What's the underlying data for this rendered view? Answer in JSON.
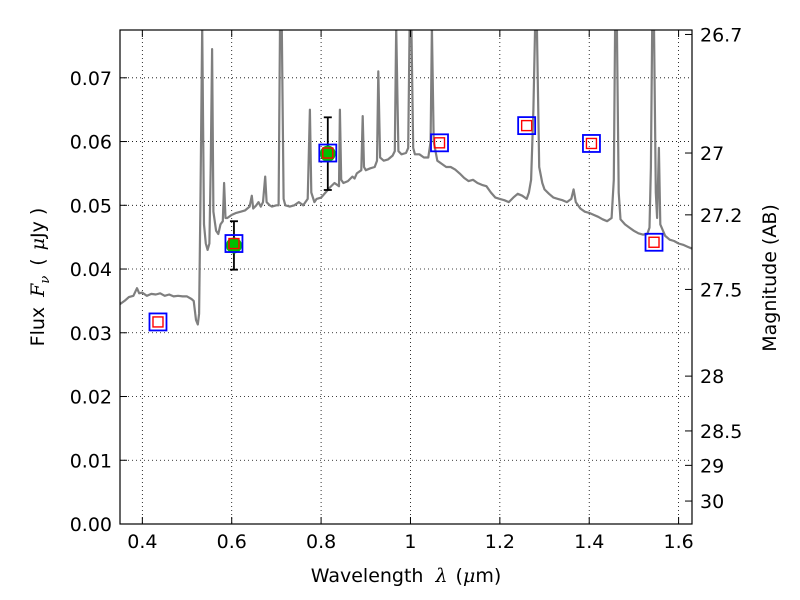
{
  "chart_data": {
    "type": "scatter",
    "xlabel": {
      "text": "Wavelength",
      "symbol": "λ",
      "unit_open": "(",
      "unit_mu": "μ",
      "unit_rest": "m)"
    },
    "ylabel": {
      "text": "Flux",
      "symbol": "F",
      "sub": "ν",
      "unit_open": "(",
      "unit_mu": "μ",
      "unit_rest": "Jy",
      "unit_close": ")"
    },
    "y2label": "Magnitude (AB)",
    "xlim": [
      0.35,
      1.63
    ],
    "ylim": [
      0.0,
      0.0775
    ],
    "grid": true,
    "x_ticks": [
      {
        "value": 0.4,
        "label": "0.4"
      },
      {
        "value": 0.6,
        "label": "0.6"
      },
      {
        "value": 0.8,
        "label": "0.8"
      },
      {
        "value": 1.0,
        "label": "1"
      },
      {
        "value": 1.2,
        "label": "1.2"
      },
      {
        "value": 1.4,
        "label": "1.4"
      },
      {
        "value": 1.6,
        "label": "1.6"
      }
    ],
    "y_ticks": [
      {
        "value": 0.0,
        "label": "0.00"
      },
      {
        "value": 0.01,
        "label": "0.01"
      },
      {
        "value": 0.02,
        "label": "0.02"
      },
      {
        "value": 0.03,
        "label": "0.03"
      },
      {
        "value": 0.04,
        "label": "0.04"
      },
      {
        "value": 0.05,
        "label": "0.05"
      },
      {
        "value": 0.06,
        "label": "0.06"
      },
      {
        "value": 0.07,
        "label": "0.07"
      }
    ],
    "mag_ticks": [
      {
        "flux": 0.0768,
        "label": "26.7"
      },
      {
        "flux": 0.0582,
        "label": "27"
      },
      {
        "flux": 0.0485,
        "label": "27.2"
      },
      {
        "flux": 0.0368,
        "label": "27.5"
      },
      {
        "flux": 0.0232,
        "label": "28"
      },
      {
        "flux": 0.0146,
        "label": "28.5"
      },
      {
        "flux": 0.0092,
        "label": "29"
      },
      {
        "flux": 0.0036,
        "label": "30"
      }
    ],
    "observed": [
      {
        "x": 0.605,
        "y": 0.0437,
        "yerr": 0.0038
      },
      {
        "x": 0.815,
        "y": 0.0581,
        "yerr": 0.0057
      }
    ],
    "model_points": [
      {
        "x": 0.435,
        "y": 0.0317
      },
      {
        "x": 0.605,
        "y": 0.044
      },
      {
        "x": 0.815,
        "y": 0.0582
      },
      {
        "x": 1.065,
        "y": 0.0598
      },
      {
        "x": 1.26,
        "y": 0.0625
      },
      {
        "x": 1.405,
        "y": 0.0597
      },
      {
        "x": 1.545,
        "y": 0.0442
      }
    ],
    "spectrum": [
      [
        0.35,
        0.0345
      ],
      [
        0.36,
        0.035
      ],
      [
        0.37,
        0.0356
      ],
      [
        0.38,
        0.0358
      ],
      [
        0.388,
        0.037
      ],
      [
        0.393,
        0.0362
      ],
      [
        0.4,
        0.0363
      ],
      [
        0.41,
        0.0358
      ],
      [
        0.42,
        0.0361
      ],
      [
        0.43,
        0.036
      ],
      [
        0.44,
        0.0362
      ],
      [
        0.45,
        0.0358
      ],
      [
        0.46,
        0.036
      ],
      [
        0.47,
        0.0357
      ],
      [
        0.48,
        0.0358
      ],
      [
        0.49,
        0.0357
      ],
      [
        0.5,
        0.0357
      ],
      [
        0.51,
        0.0353
      ],
      [
        0.515,
        0.035
      ],
      [
        0.52,
        0.032
      ],
      [
        0.524,
        0.0313
      ],
      [
        0.527,
        0.033
      ],
      [
        0.53,
        0.05
      ],
      [
        0.534,
        0.078
      ],
      [
        0.538,
        0.047
      ],
      [
        0.542,
        0.044
      ],
      [
        0.546,
        0.043
      ],
      [
        0.55,
        0.044
      ],
      [
        0.553,
        0.056
      ],
      [
        0.556,
        0.0745
      ],
      [
        0.559,
        0.049
      ],
      [
        0.565,
        0.046
      ],
      [
        0.57,
        0.0455
      ],
      [
        0.575,
        0.047
      ],
      [
        0.58,
        0.0475
      ],
      [
        0.583,
        0.0535
      ],
      [
        0.586,
        0.048
      ],
      [
        0.59,
        0.048
      ],
      [
        0.6,
        0.0485
      ],
      [
        0.61,
        0.0488
      ],
      [
        0.62,
        0.049
      ],
      [
        0.63,
        0.0492
      ],
      [
        0.64,
        0.0498
      ],
      [
        0.645,
        0.0515
      ],
      [
        0.648,
        0.0495
      ],
      [
        0.655,
        0.05
      ],
      [
        0.66,
        0.0505
      ],
      [
        0.665,
        0.0498
      ],
      [
        0.67,
        0.0505
      ],
      [
        0.675,
        0.0545
      ],
      [
        0.678,
        0.0505
      ],
      [
        0.685,
        0.05
      ],
      [
        0.69,
        0.0498
      ],
      [
        0.7,
        0.05
      ],
      [
        0.705,
        0.05
      ],
      [
        0.708,
        0.078
      ],
      [
        0.712,
        0.078
      ],
      [
        0.716,
        0.051
      ],
      [
        0.72,
        0.05
      ],
      [
        0.73,
        0.0498
      ],
      [
        0.74,
        0.05
      ],
      [
        0.75,
        0.0505
      ],
      [
        0.76,
        0.05
      ],
      [
        0.77,
        0.051
      ],
      [
        0.775,
        0.065
      ],
      [
        0.778,
        0.052
      ],
      [
        0.785,
        0.0505
      ],
      [
        0.79,
        0.051
      ],
      [
        0.8,
        0.0512
      ],
      [
        0.81,
        0.052
      ],
      [
        0.82,
        0.0528
      ],
      [
        0.83,
        0.0535
      ],
      [
        0.84,
        0.053
      ],
      [
        0.842,
        0.065
      ],
      [
        0.845,
        0.054
      ],
      [
        0.85,
        0.0535
      ],
      [
        0.86,
        0.0538
      ],
      [
        0.87,
        0.0545
      ],
      [
        0.875,
        0.0542
      ],
      [
        0.88,
        0.055
      ],
      [
        0.89,
        0.0555
      ],
      [
        0.893,
        0.064
      ],
      [
        0.896,
        0.056
      ],
      [
        0.9,
        0.0555
      ],
      [
        0.91,
        0.0558
      ],
      [
        0.92,
        0.056
      ],
      [
        0.925,
        0.057
      ],
      [
        0.928,
        0.071
      ],
      [
        0.932,
        0.0575
      ],
      [
        0.94,
        0.057
      ],
      [
        0.95,
        0.0572
      ],
      [
        0.96,
        0.0578
      ],
      [
        0.965,
        0.0585
      ],
      [
        0.968,
        0.078
      ],
      [
        0.973,
        0.0585
      ],
      [
        0.98,
        0.058
      ],
      [
        0.99,
        0.0582
      ],
      [
        0.995,
        0.059
      ],
      [
        0.998,
        0.078
      ],
      [
        1.002,
        0.078
      ],
      [
        1.006,
        0.059
      ],
      [
        1.01,
        0.058
      ],
      [
        1.02,
        0.058
      ],
      [
        1.03,
        0.0575
      ],
      [
        1.04,
        0.0575
      ],
      [
        1.045,
        0.06
      ],
      [
        1.048,
        0.078
      ],
      [
        1.052,
        0.06
      ],
      [
        1.06,
        0.057
      ],
      [
        1.07,
        0.0565
      ],
      [
        1.08,
        0.056
      ],
      [
        1.09,
        0.056
      ],
      [
        1.1,
        0.0556
      ],
      [
        1.11,
        0.055
      ],
      [
        1.12,
        0.0543
      ],
      [
        1.13,
        0.0538
      ],
      [
        1.14,
        0.054
      ],
      [
        1.15,
        0.0535
      ],
      [
        1.16,
        0.0532
      ],
      [
        1.17,
        0.053
      ],
      [
        1.18,
        0.052
      ],
      [
        1.19,
        0.0512
      ],
      [
        1.2,
        0.051
      ],
      [
        1.21,
        0.0508
      ],
      [
        1.22,
        0.0505
      ],
      [
        1.23,
        0.0512
      ],
      [
        1.24,
        0.0518
      ],
      [
        1.25,
        0.0515
      ],
      [
        1.26,
        0.051
      ],
      [
        1.265,
        0.052
      ],
      [
        1.27,
        0.054
      ],
      [
        1.275,
        0.065
      ],
      [
        1.279,
        0.078
      ],
      [
        1.283,
        0.078
      ],
      [
        1.288,
        0.056
      ],
      [
        1.295,
        0.0535
      ],
      [
        1.3,
        0.0525
      ],
      [
        1.31,
        0.0518
      ],
      [
        1.32,
        0.0512
      ],
      [
        1.33,
        0.051
      ],
      [
        1.34,
        0.0508
      ],
      [
        1.35,
        0.0505
      ],
      [
        1.36,
        0.051
      ],
      [
        1.365,
        0.0525
      ],
      [
        1.37,
        0.0505
      ],
      [
        1.38,
        0.0495
      ],
      [
        1.39,
        0.049
      ],
      [
        1.4,
        0.0488
      ],
      [
        1.41,
        0.0485
      ],
      [
        1.42,
        0.0482
      ],
      [
        1.43,
        0.0478
      ],
      [
        1.44,
        0.0475
      ],
      [
        1.45,
        0.048
      ],
      [
        1.455,
        0.054
      ],
      [
        1.458,
        0.078
      ],
      [
        1.462,
        0.078
      ],
      [
        1.466,
        0.052
      ],
      [
        1.47,
        0.0478
      ],
      [
        1.48,
        0.047
      ],
      [
        1.49,
        0.0465
      ],
      [
        1.5,
        0.046
      ],
      [
        1.51,
        0.0456
      ],
      [
        1.52,
        0.0454
      ],
      [
        1.53,
        0.0455
      ],
      [
        1.535,
        0.0465
      ],
      [
        1.538,
        0.056
      ],
      [
        1.541,
        0.078
      ],
      [
        1.545,
        0.078
      ],
      [
        1.549,
        0.052
      ],
      [
        1.552,
        0.048
      ],
      [
        1.556,
        0.059
      ],
      [
        1.559,
        0.047
      ],
      [
        1.57,
        0.0452
      ],
      [
        1.58,
        0.0446
      ],
      [
        1.59,
        0.0444
      ],
      [
        1.6,
        0.044
      ],
      [
        1.61,
        0.0438
      ],
      [
        1.62,
        0.0435
      ],
      [
        1.63,
        0.0432
      ]
    ],
    "colors": {
      "spectrum": "#7f7f7f",
      "observed_fill": "#00bf00",
      "model_outer": "#0000ff",
      "model_inner": "#ff0000",
      "errorbar": "#000000",
      "grid": "#000000",
      "frame": "#000000"
    }
  }
}
